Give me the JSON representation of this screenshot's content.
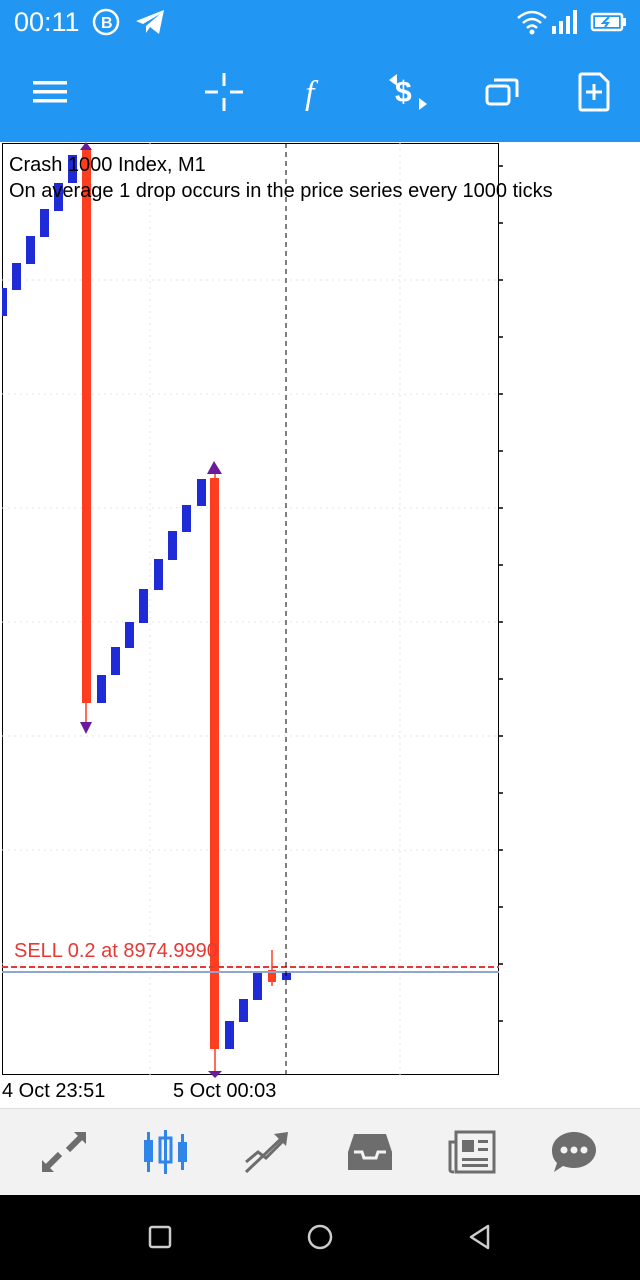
{
  "status_bar": {
    "time": "00:11",
    "icons": [
      "b-badge-icon",
      "telegram-icon",
      "wifi-icon",
      "signal-icon",
      "battery-icon"
    ]
  },
  "toolbar": {
    "icons": [
      "menu-icon",
      "crosshair-icon",
      "indicators-icon",
      "trade-icon",
      "windows-icon",
      "new-order-icon"
    ]
  },
  "chart": {
    "symbol_title": "Crash 1000 Index, M1",
    "description": "On average 1 drop occurs in the price series every 1000 ticks",
    "order_line_label": "SELL 0.2 at 8974.9990",
    "x_labels": [
      "4 Oct 23:51",
      "5 Oct 00:03"
    ],
    "colors": {
      "bull": "#1f2bd6",
      "bear": "#ff3d1f",
      "order_line": "#e53935",
      "bid_line": "#90a4d8",
      "arrow": "#6a1b9a"
    }
  },
  "chart_data": {
    "type": "candlestick",
    "x": [
      "4 Oct 23:51",
      "5 Oct 00:03"
    ],
    "order": {
      "side": "SELL",
      "volume": 0.2,
      "price": 8974.999
    }
  },
  "bottom_nav": {
    "items": [
      "quotes-icon",
      "chart-icon",
      "trade-icon",
      "history-icon",
      "news-icon",
      "chat-icon"
    ],
    "active": "chart-icon"
  },
  "system_nav": {
    "items": [
      "recent-apps-icon",
      "home-icon",
      "back-icon"
    ]
  }
}
